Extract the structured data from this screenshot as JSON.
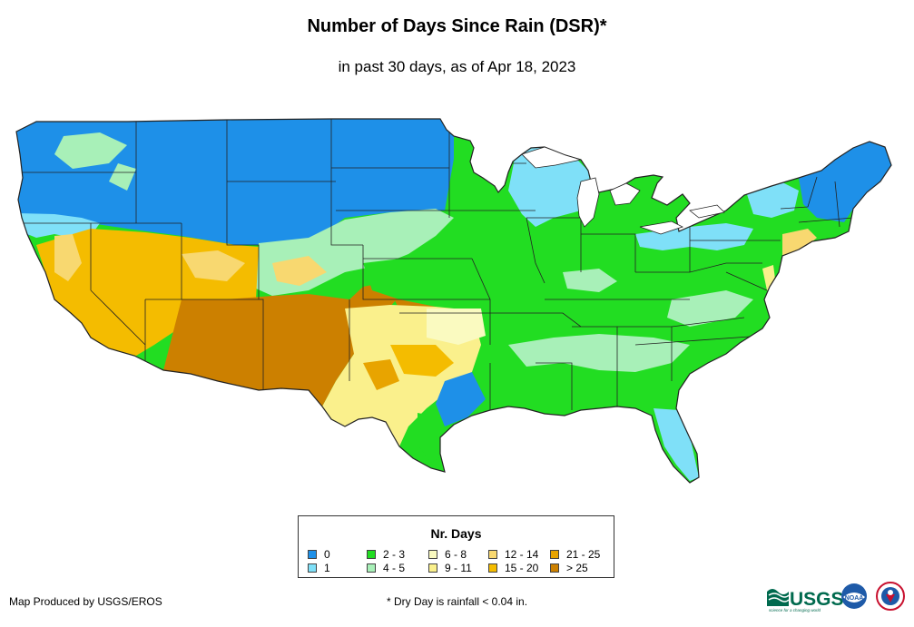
{
  "title": "Number of Days Since Rain (DSR)*",
  "subtitle": "in past 30 days, as of Apr 18, 2023",
  "legend": {
    "title": "Nr. Days",
    "items": [
      {
        "label": "0",
        "color": "#1E90E8"
      },
      {
        "label": "1",
        "color": "#7FE0F8"
      },
      {
        "label": "2 - 3",
        "color": "#22DD22"
      },
      {
        "label": "4 - 5",
        "color": "#A8F0B8"
      },
      {
        "label": "6 - 8",
        "color": "#FAFAC0"
      },
      {
        "label": "9 - 11",
        "color": "#FAF08C"
      },
      {
        "label": "12 - 14",
        "color": "#F8D870"
      },
      {
        "label": "15 - 20",
        "color": "#F4BC00"
      },
      {
        "label": "21 - 25",
        "color": "#E8A400"
      },
      {
        "label": "> 25",
        "color": "#CC8000"
      }
    ]
  },
  "credit": "Map Produced by USGS/EROS",
  "footnote": "* Dry Day is rainfall < 0.04 in.",
  "logos": {
    "usgs": "USGS",
    "usgs_tagline": "science for a changing world",
    "noaa": "NOAA"
  }
}
